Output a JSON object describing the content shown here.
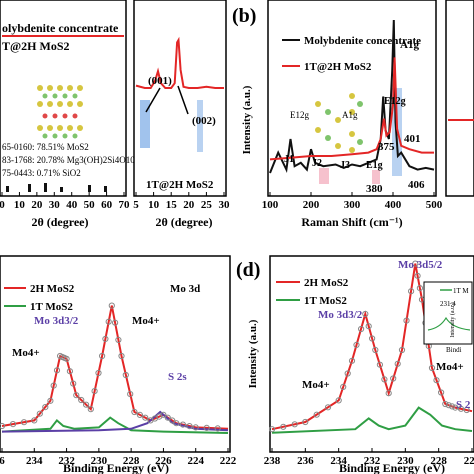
{
  "panel_labels": {
    "b": "(b)",
    "d": "(d)"
  },
  "colors": {
    "red": "#e32626",
    "green": "#2f9e44",
    "purple": "#5b3fa6",
    "black": "#111111",
    "grey_points": "#888888",
    "blue_hl": "#8ab4e8",
    "pink_hl": "#f2a6b8"
  },
  "chart_data": [
    {
      "panel": "a-left",
      "type": "line",
      "xlabel": "2θ (degree)",
      "xlim": [
        5,
        70
      ],
      "ticks_x": [
        "0",
        "10",
        "20",
        "30",
        "40",
        "50",
        "60",
        "70"
      ],
      "legend": [
        "olybdenite concentrate",
        "T@2H MoS2"
      ],
      "annotations": [
        "65-0160: 78.51% MoS2",
        "83-1768: 20.78% Mg3(OH)2Si4O10",
        "75-0443: 0.71% SiO2"
      ],
      "series": [
        {
          "name": "T@2H MoS2",
          "color": "#e32626",
          "x": [
            5,
            70
          ],
          "y": [
            0.9,
            0.9
          ]
        }
      ]
    },
    {
      "panel": "a-right",
      "type": "line",
      "xlabel": "2θ (degree)",
      "xlim": [
        0,
        30
      ],
      "ticks_x": [
        "5",
        "10",
        "15",
        "20",
        "25",
        "30"
      ],
      "peak_labels": [
        "(001)",
        "(002)"
      ],
      "legend_label": "1T@2H MoS2",
      "series": [
        {
          "name": "1T@2H MoS2",
          "color": "#e32626",
          "x": [
            0,
            3,
            5,
            6.5,
            7.5,
            8.5,
            10,
            12,
            13.2,
            14.0,
            14.5,
            15.2,
            16.2,
            18,
            21,
            24,
            27,
            30
          ],
          "y": [
            0.62,
            0.6,
            0.6,
            0.66,
            0.74,
            0.64,
            0.6,
            0.6,
            0.64,
            0.98,
            1.0,
            0.75,
            0.61,
            0.6,
            0.6,
            0.61,
            0.6,
            0.6
          ]
        }
      ]
    },
    {
      "panel": "b",
      "type": "line",
      "xlabel": "Raman Shift (cm⁻¹)",
      "ylabel": "Intensity (a.u.)",
      "xlim": [
        100,
        500
      ],
      "ticks_x": [
        "100",
        "200",
        "300",
        "400",
        "500"
      ],
      "legend": [
        "Molybdenite concentrate",
        "1T@2H MoS2"
      ],
      "peak_labels": [
        "A1g",
        "E12g",
        "375",
        "401",
        "J1",
        "J2",
        "J3",
        "E1g",
        "380",
        "406",
        "A1g",
        "E12g"
      ],
      "series": [
        {
          "name": "Molybdenite concentrate",
          "color": "#111111",
          "x": [
            100,
            120,
            140,
            150,
            160,
            175,
            190,
            200,
            210,
            230,
            260,
            280,
            300,
            320,
            340,
            360,
            370,
            376,
            382,
            390,
            398,
            402,
            406,
            412,
            420,
            440,
            460,
            480,
            500
          ],
          "y": [
            0.1,
            0.22,
            0.12,
            0.3,
            0.14,
            0.16,
            0.12,
            0.24,
            0.16,
            0.14,
            0.15,
            0.13,
            0.15,
            0.14,
            0.16,
            0.18,
            0.3,
            0.55,
            0.35,
            0.3,
            0.7,
            1.0,
            0.4,
            0.2,
            0.22,
            0.14,
            0.12,
            0.13,
            0.12
          ]
        },
        {
          "name": "1T@2H MoS2",
          "color": "#e32626",
          "x": [
            100,
            150,
            200,
            250,
            300,
            340,
            360,
            370,
            378,
            384,
            392,
            400,
            404,
            410,
            420,
            440,
            470,
            500
          ],
          "y": [
            0.18,
            0.19,
            0.2,
            0.2,
            0.21,
            0.22,
            0.24,
            0.3,
            0.42,
            0.32,
            0.34,
            0.5,
            0.78,
            0.36,
            0.26,
            0.24,
            0.22,
            0.22
          ]
        }
      ]
    },
    {
      "panel": "c",
      "type": "line",
      "xlabel": "Binding Energy (eV)",
      "xlim": [
        236,
        222
      ],
      "ticks_x": [
        "6",
        "234",
        "232",
        "230",
        "228",
        "226",
        "224",
        "222"
      ],
      "legend": [
        "2H MoS2",
        "1T MoS2"
      ],
      "corner_label": "Mo 3d",
      "peak_labels": [
        "Mo 3d3/2",
        "Mo4+",
        "Mo4+",
        "S 2s"
      ],
      "series": [
        {
          "name": "2H MoS2",
          "color": "#e32626",
          "x": [
            236,
            234,
            233,
            232.4,
            232.0,
            231.4,
            230.5,
            229.8,
            229.2,
            228.6,
            227.8,
            226.8,
            226.0,
            225.2,
            224,
            222
          ],
          "y": [
            0.1,
            0.14,
            0.28,
            0.6,
            0.58,
            0.32,
            0.22,
            0.6,
            0.96,
            0.6,
            0.2,
            0.14,
            0.18,
            0.12,
            0.09,
            0.08
          ]
        },
        {
          "name": "1T MoS2",
          "color": "#2f9e44",
          "x": [
            236,
            233,
            232.6,
            232.2,
            231.5,
            230,
            229.3,
            228.8,
            228,
            226,
            222
          ],
          "y": [
            0.06,
            0.08,
            0.14,
            0.1,
            0.08,
            0.09,
            0.16,
            0.12,
            0.07,
            0.06,
            0.05
          ]
        },
        {
          "name": "S 2s",
          "color": "#5b3fa6",
          "x": [
            236,
            230,
            228,
            227,
            226.2,
            225.4,
            224,
            222
          ],
          "y": [
            0.06,
            0.07,
            0.08,
            0.12,
            0.2,
            0.12,
            0.08,
            0.07
          ]
        }
      ]
    },
    {
      "panel": "d",
      "type": "line",
      "xlabel": "Binding Energy (eV)",
      "ylabel": "Intensity (a.u.)",
      "xlim": [
        238,
        226
      ],
      "ticks_x": [
        "238",
        "236",
        "234",
        "232",
        "230",
        "228",
        "226"
      ],
      "legend": [
        "2H MoS2",
        "1T MoS2"
      ],
      "peak_labels": [
        "Mo 3d5/2",
        "Mo 3d3/2",
        "Mo4+",
        "Mo4+",
        "S 2"
      ],
      "inset": {
        "legend": "1T M",
        "value": "231.4",
        "ylabel": "Intensity (a.u.)",
        "xlabel": "Bindi"
      },
      "series": [
        {
          "name": "2H MoS2",
          "color": "#e32626",
          "x": [
            238,
            236,
            234,
            233.2,
            232.4,
            231.8,
            231.0,
            230.2,
            229.4,
            229.0,
            228.4,
            227.6,
            227,
            226
          ],
          "y": [
            0.06,
            0.1,
            0.22,
            0.44,
            0.7,
            0.5,
            0.26,
            0.5,
            0.98,
            0.78,
            0.4,
            0.2,
            0.18,
            0.16
          ]
        },
        {
          "name": "1T MoS2",
          "color": "#2f9e44",
          "x": [
            238,
            233,
            232.2,
            231.6,
            231,
            230,
            229.2,
            228.5,
            227.8,
            227,
            226
          ],
          "y": [
            0.04,
            0.06,
            0.12,
            0.08,
            0.06,
            0.08,
            0.18,
            0.14,
            0.08,
            0.06,
            0.05
          ]
        }
      ]
    }
  ]
}
